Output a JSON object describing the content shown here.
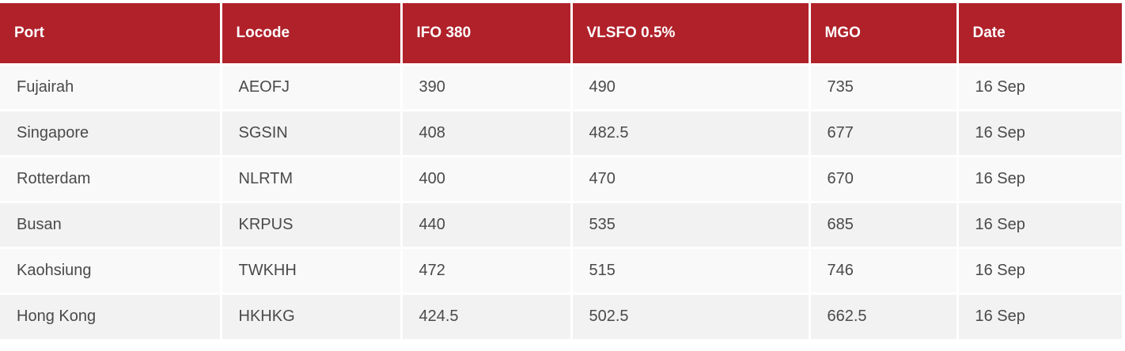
{
  "table": {
    "headers": [
      "Port",
      "Locode",
      "IFO 380",
      "VLSFO 0.5%",
      "MGO",
      "Date"
    ],
    "rows": [
      [
        "Fujairah",
        "AEOFJ",
        "390",
        "490",
        "735",
        "16 Sep"
      ],
      [
        "Singapore",
        "SGSIN",
        "408",
        "482.5",
        "677",
        "16 Sep"
      ],
      [
        "Rotterdam",
        "NLRTM",
        "400",
        "470",
        "670",
        "16 Sep"
      ],
      [
        "Busan",
        "KRPUS",
        "440",
        "535",
        "685",
        "16 Sep"
      ],
      [
        "Kaohsiung",
        "TWKHH",
        "472",
        "515",
        "746",
        "16 Sep"
      ],
      [
        "Hong Kong",
        "HKHKG",
        "424.5",
        "502.5",
        "662.5",
        "16 Sep"
      ]
    ]
  },
  "colors": {
    "header_bg": "#b0212a",
    "header_text": "#ffffff",
    "row_odd_bg": "#f9f9f9",
    "row_even_bg": "#f2f2f2",
    "cell_text": "#4a4a4a"
  }
}
